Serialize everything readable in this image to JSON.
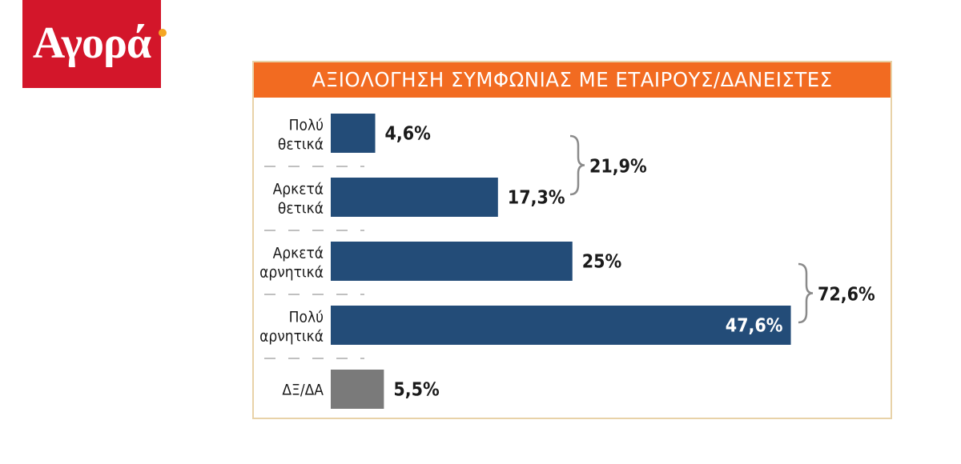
{
  "brand": {
    "logo_text": "Αγορά",
    "logo_bg": "#d3162a",
    "logo_dot": "#f5a623"
  },
  "chart_data": {
    "type": "bar",
    "orientation": "horizontal",
    "title": "ΑΞΙΟΛΟΓΗΣΗ ΣΥΜΦΩΝΙΑΣ ΜΕ ΕΤΑΙΡΟΥΣ/ΔΑΝΕΙΣΤΕΣ",
    "categories": [
      [
        "Πολύ",
        "θετικά"
      ],
      [
        "Αρκετά",
        "θετικά"
      ],
      [
        "Αρκετά",
        "αρνητικά"
      ],
      [
        "Πολύ",
        "αρνητικά"
      ],
      [
        "ΔΞ/ΔΑ"
      ]
    ],
    "values": [
      4.6,
      17.3,
      25,
      47.6,
      5.5
    ],
    "value_labels": [
      "4,6%",
      "17,3%",
      "25%",
      "47,6%",
      "5,5%"
    ],
    "bar_colors": [
      "#234c78",
      "#234c78",
      "#234c78",
      "#234c78",
      "#7a7a7a"
    ],
    "groups": [
      {
        "from": 0,
        "to": 1,
        "label": "21,9%"
      },
      {
        "from": 2,
        "to": 3,
        "label": "72,6%"
      }
    ],
    "xlim": [
      0,
      50
    ],
    "grid": false,
    "accent": "#f26b21"
  }
}
